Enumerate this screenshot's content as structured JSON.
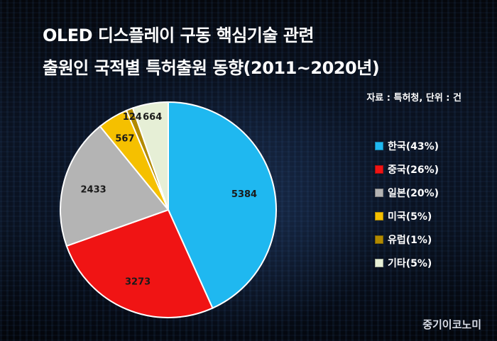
{
  "title_line1": "OLED 디스플레이 구동 핵심기술 관련",
  "title_line2": "출원인 국적별 특허출원 동향(2011~2020년)",
  "source": "자료 : 특허청, 단위 : 건",
  "credit": "중기이코노미",
  "chart_data": {
    "type": "pie",
    "title": "OLED 디스플레이 구동 핵심기술 관련 출원인 국적별 특허출원 동향(2011~2020년)",
    "legend_position": "right",
    "slices": [
      {
        "name": "한국",
        "value": 5384,
        "legend": "한국(43%)",
        "color": "#1fb8f0"
      },
      {
        "name": "중국",
        "value": 3273,
        "legend": "중국(26%)",
        "color": "#f01414"
      },
      {
        "name": "일본",
        "value": 2433,
        "legend": "일본(20%)",
        "color": "#b4b4b4"
      },
      {
        "name": "미국",
        "value": 567,
        "legend": "미국(5%)",
        "color": "#f5c000"
      },
      {
        "name": "유럽",
        "value": 124,
        "legend": "유럽(1%)",
        "color": "#b28a00"
      },
      {
        "name": "기타",
        "value": 664,
        "legend": "기타(5%)",
        "color": "#e6efd6"
      }
    ]
  }
}
